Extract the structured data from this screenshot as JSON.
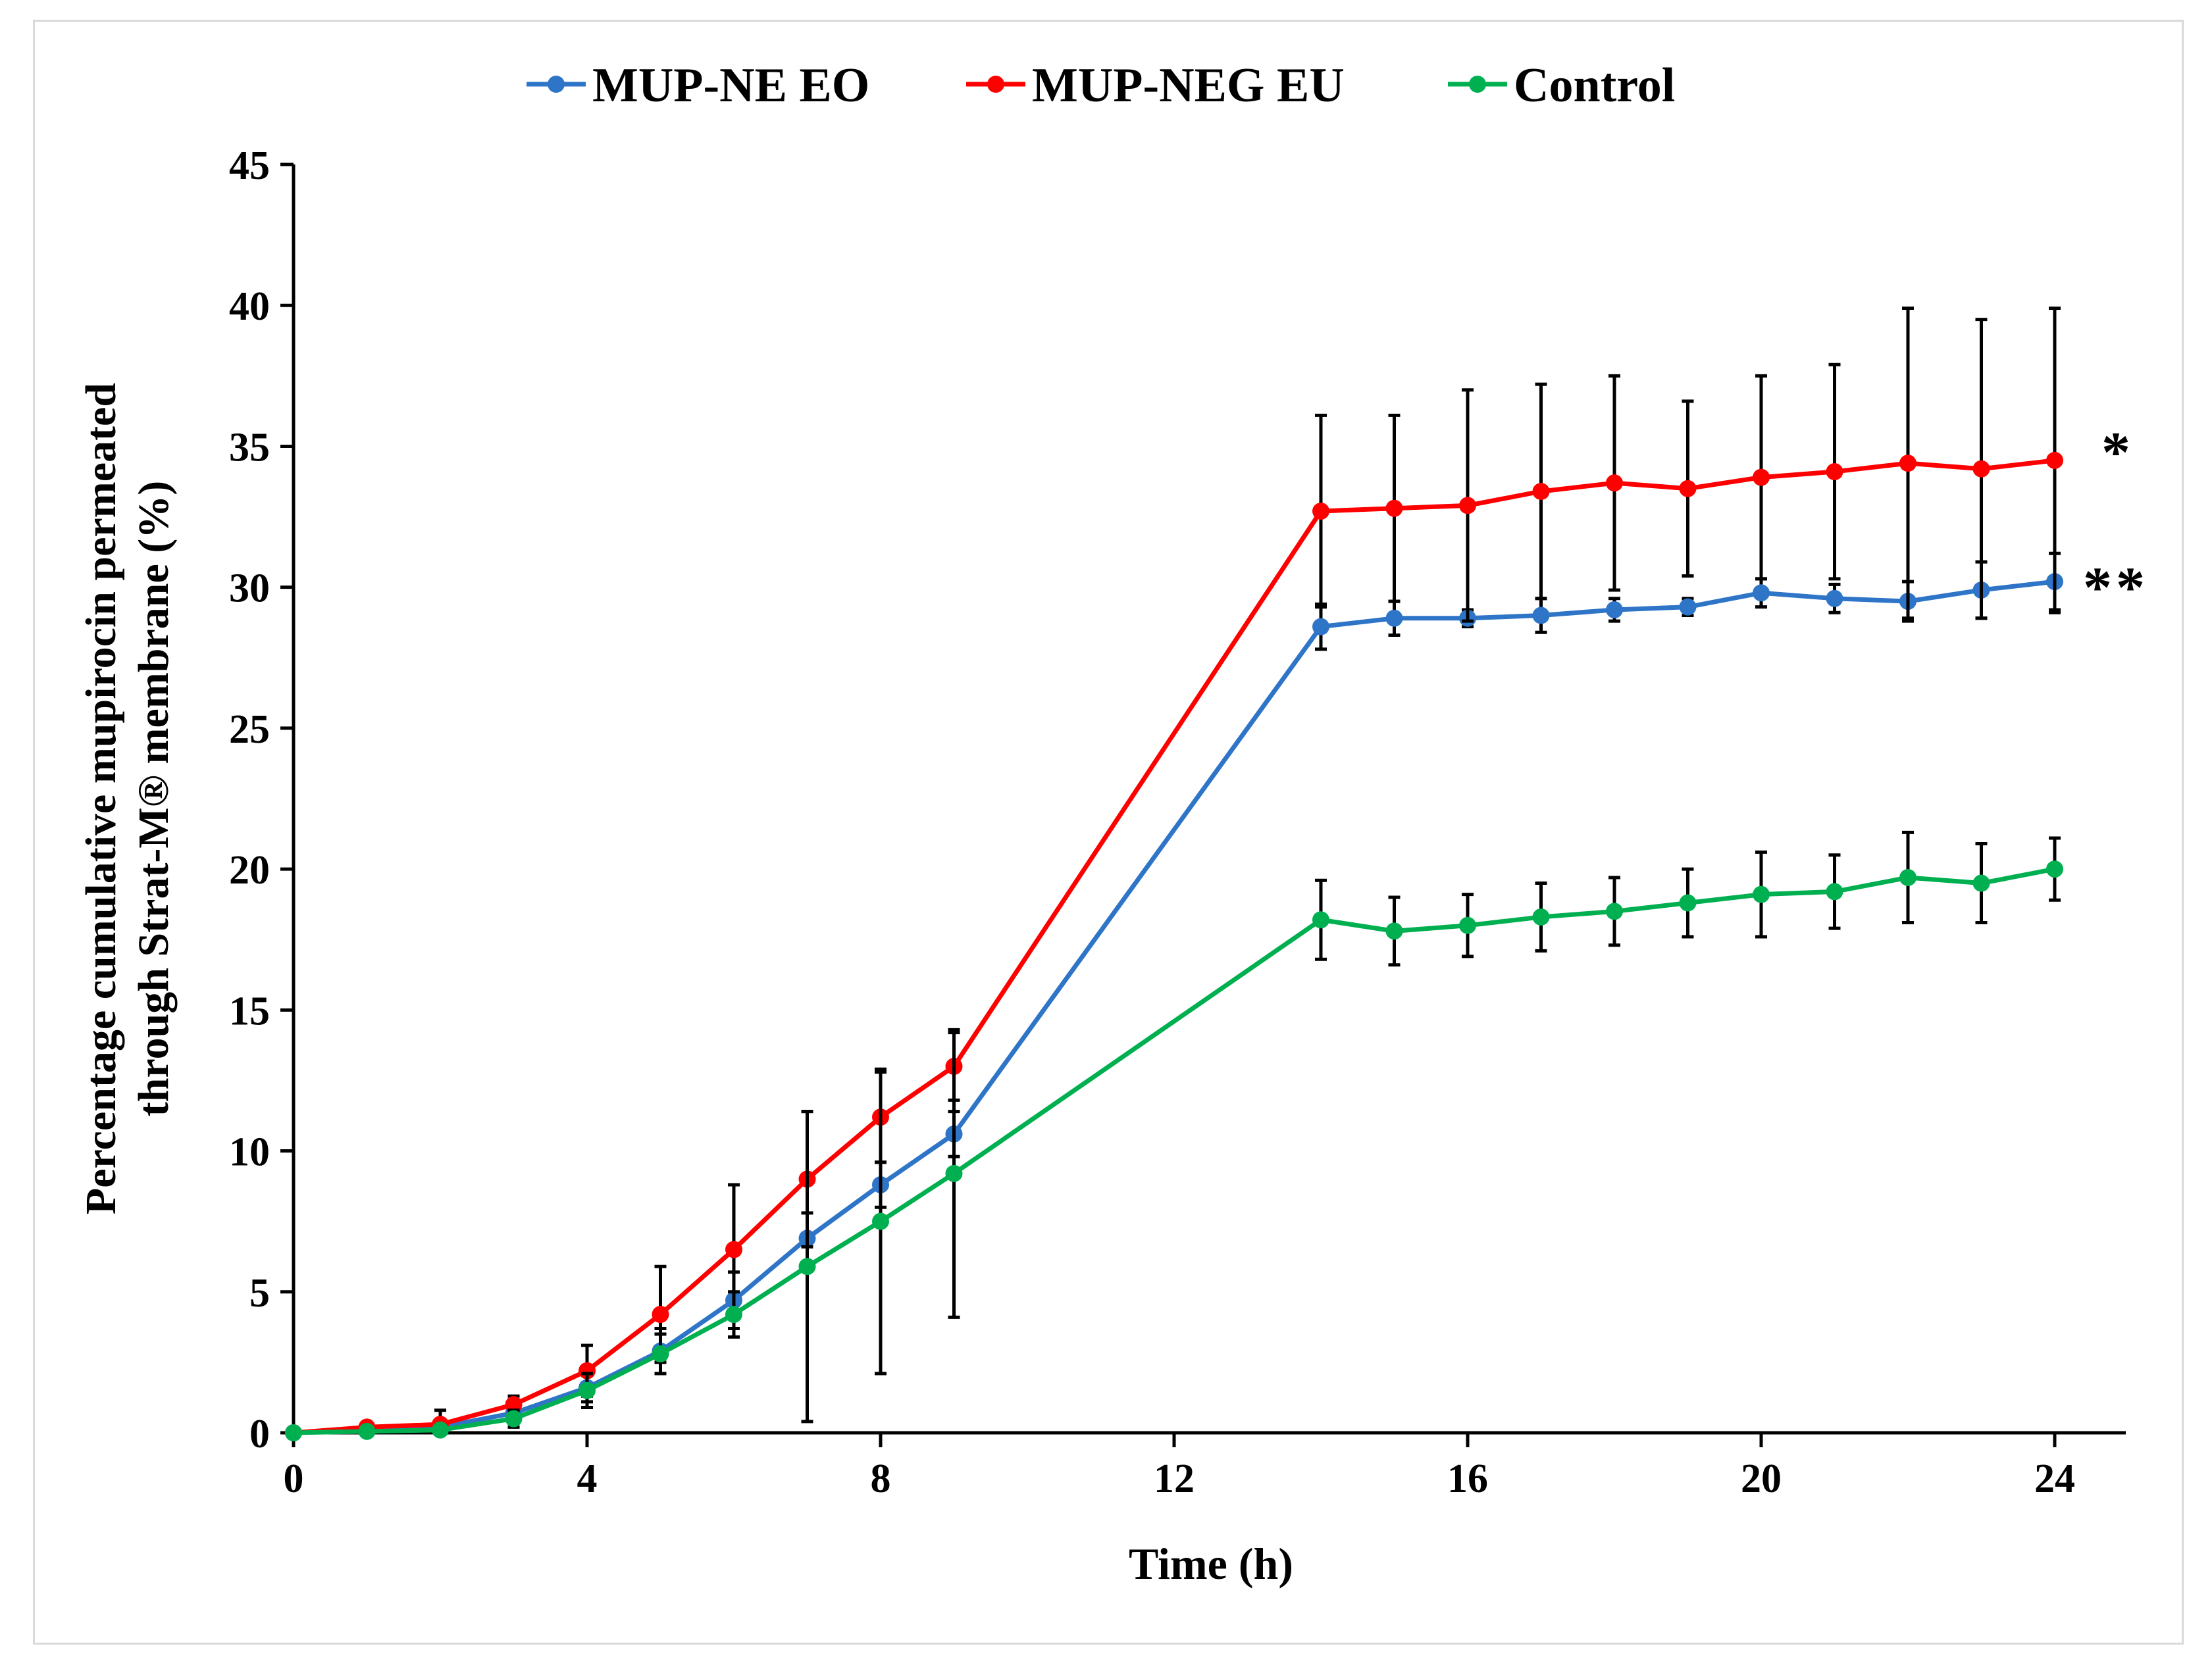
{
  "chart_data": {
    "type": "line",
    "title": "",
    "xlabel": "Time (h)",
    "ylabel_line1": "Percentage cumulative mupirocin permeated",
    "ylabel_line2": "through Strat-M® membrane (%)",
    "xlim": [
      0,
      25
    ],
    "ylim": [
      0,
      45
    ],
    "xticks": [
      0,
      4,
      8,
      12,
      16,
      20,
      24
    ],
    "yticks": [
      0,
      5,
      10,
      15,
      20,
      25,
      30,
      35,
      40,
      45
    ],
    "x": [
      0,
      1,
      2,
      3,
      4,
      5,
      6,
      7,
      8,
      9,
      14,
      15,
      16,
      17,
      18,
      19,
      20,
      21,
      22,
      23,
      24
    ],
    "legend_position": "top",
    "series": [
      {
        "name": "MUP-NE EO",
        "color": "#2e75c8",
        "values": [
          0,
          0.1,
          0.2,
          0.7,
          1.6,
          2.9,
          4.7,
          6.9,
          8.8,
          10.6,
          28.6,
          28.9,
          28.9,
          29.0,
          29.2,
          29.3,
          29.8,
          29.6,
          29.5,
          29.9,
          30.2
        ],
        "errors": [
          0,
          0.1,
          0.2,
          0.3,
          0.5,
          0.8,
          1.0,
          0.9,
          0.8,
          0.8,
          0.8,
          0.6,
          0.3,
          0.6,
          0.4,
          0.3,
          0.5,
          0.5,
          0.7,
          1.0,
          1.0
        ]
      },
      {
        "name": "MUP-NEG EU",
        "color": "#ff0000",
        "values": [
          0,
          0.2,
          0.3,
          1.0,
          2.2,
          4.2,
          6.5,
          9.0,
          11.2,
          13.0,
          32.7,
          32.8,
          32.9,
          33.4,
          33.7,
          33.5,
          33.9,
          34.1,
          34.4,
          34.2,
          34.5
        ],
        "errors": [
          0,
          0.1,
          0.5,
          0.3,
          0.9,
          1.7,
          2.3,
          2.4,
          1.6,
          1.2,
          3.4,
          3.3,
          4.1,
          3.8,
          3.8,
          3.1,
          3.6,
          3.8,
          5.5,
          5.3,
          5.4
        ]
      },
      {
        "name": "Control",
        "color": "#00b050",
        "values": [
          0,
          0.05,
          0.1,
          0.5,
          1.5,
          2.8,
          4.2,
          5.9,
          7.5,
          9.2,
          18.2,
          17.8,
          18.0,
          18.3,
          18.5,
          18.8,
          19.1,
          19.2,
          19.7,
          19.5,
          20.0
        ],
        "errors": [
          0,
          0.05,
          0.1,
          0.3,
          0.6,
          0.7,
          0.8,
          5.5,
          5.4,
          5.1,
          1.4,
          1.2,
          1.1,
          1.2,
          1.2,
          1.2,
          1.5,
          1.3,
          1.6,
          1.4,
          1.1
        ]
      }
    ],
    "annotations": [
      {
        "text": "*",
        "x": 25,
        "y": 34.8
      },
      {
        "text": "**",
        "x": 25,
        "y": 30.0
      }
    ]
  }
}
